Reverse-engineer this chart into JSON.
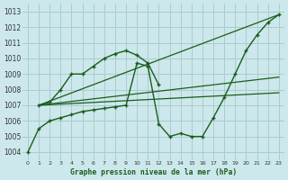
{
  "title": "Graphe pression niveau de la mer (hPa)",
  "background_color": "#cce8ec",
  "grid_color": "#aacccc",
  "line_color": "#1a5c1a",
  "xlim": [
    -0.5,
    23.5
  ],
  "ylim": [
    1003.5,
    1013.5
  ],
  "yticks": [
    1004,
    1005,
    1006,
    1007,
    1008,
    1009,
    1010,
    1011,
    1012,
    1013
  ],
  "xticks": [
    0,
    1,
    2,
    3,
    4,
    5,
    6,
    7,
    8,
    9,
    10,
    11,
    12,
    13,
    14,
    15,
    16,
    17,
    18,
    19,
    20,
    21,
    22,
    23
  ],
  "line1_x": [
    0,
    1,
    2,
    3,
    4,
    5,
    6,
    7,
    8,
    9,
    10,
    11,
    12,
    13,
    14,
    15,
    16,
    17,
    18,
    19,
    20,
    21,
    22,
    23
  ],
  "line1_y": [
    1004,
    1005.5,
    1006.0,
    1006.3,
    1006.5,
    1006.6,
    1006.8,
    1006.9,
    1007.0,
    1007.1,
    1009.7,
    1009.5,
    1005.8,
    1005.0,
    1005.2,
    1005.0,
    1005.0,
    1006.2,
    1007.5,
    1009.0,
    1010.5,
    1011.5,
    1012.3,
    1012.8
  ],
  "line2_x": [
    1,
    2,
    3,
    4,
    5,
    6,
    7,
    8,
    9,
    10,
    11,
    12
  ],
  "line2_y": [
    1007.0,
    1007.2,
    1008.0,
    1009.0,
    1009.0,
    1009.5,
    1010.0,
    1010.3,
    1010.5,
    1010.2,
    1009.7,
    1008.3
  ],
  "trend1_x": [
    1,
    23
  ],
  "trend1_y": [
    1007.0,
    1007.8
  ],
  "trend2_x": [
    1,
    23
  ],
  "trend2_y": [
    1007.0,
    1008.8
  ],
  "trend3_x": [
    1,
    23
  ],
  "trend3_y": [
    1007.0,
    1012.8
  ]
}
